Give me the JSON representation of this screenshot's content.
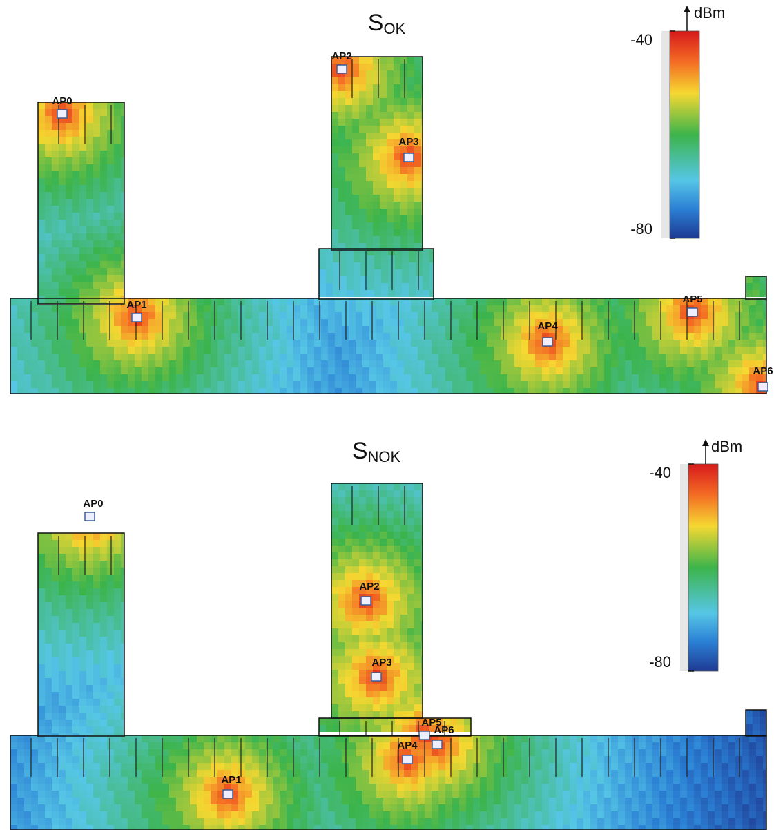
{
  "panels": [
    {
      "title": {
        "main": "S",
        "sub": "OK"
      },
      "colorbar": {
        "label": "dBm",
        "lim": [
          -80,
          -40
        ],
        "ticks": [
          -40,
          -80
        ]
      },
      "access_points": [
        "AP0",
        "AP1",
        "AP2",
        "AP3",
        "AP4",
        "AP5",
        "AP6"
      ]
    },
    {
      "title": {
        "main": "S",
        "sub": "NOK"
      },
      "colorbar": {
        "label": "dBm",
        "lim": [
          -80,
          -40
        ],
        "ticks": [
          -40,
          -80
        ]
      },
      "access_points": [
        "AP0",
        "AP1",
        "AP2",
        "AP3",
        "AP4",
        "AP5",
        "AP6"
      ]
    }
  ]
}
